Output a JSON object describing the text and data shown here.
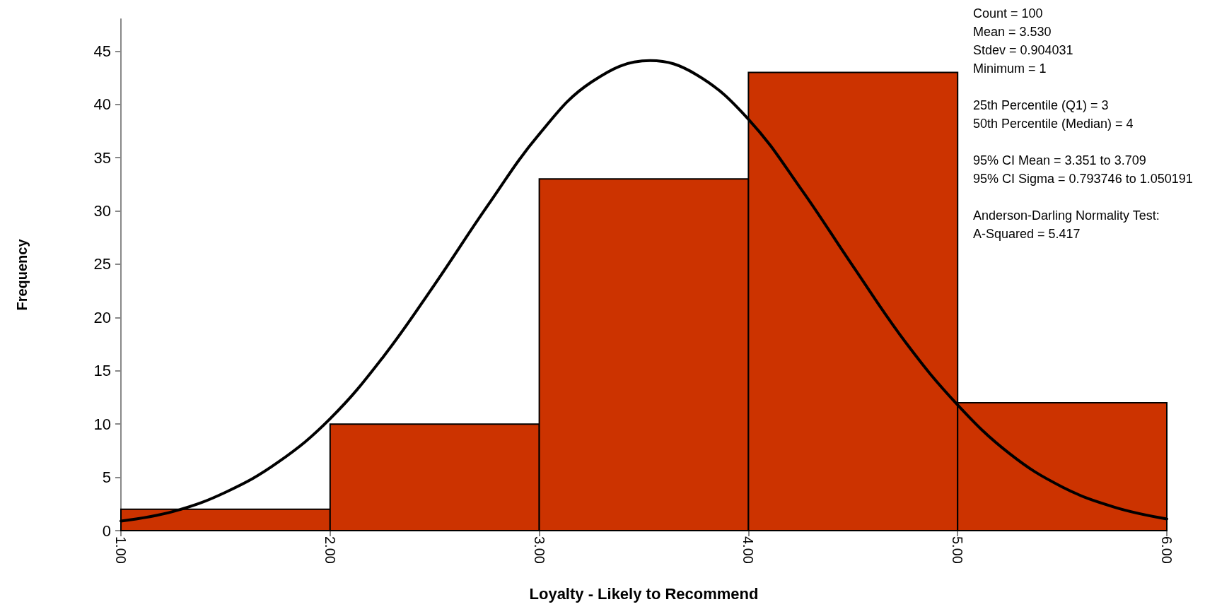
{
  "chart_data": {
    "type": "histogram",
    "xlabel": "Loyalty - Likely to Recommend",
    "ylabel": "Frequency",
    "bins": [
      1,
      2,
      3,
      4,
      5,
      6
    ],
    "values": [
      2,
      10,
      33,
      43,
      12
    ],
    "color": "#cc3300",
    "series": [
      {
        "type": "line",
        "color": "#000000",
        "x": [
          1,
          1.25,
          1.5,
          1.75,
          2,
          2.25,
          2.5,
          2.75,
          3,
          3.25,
          3.53,
          3.75,
          4,
          4.25,
          4.5,
          4.75,
          5,
          5.25,
          5.5,
          5.75,
          6
        ],
        "values": [
          0.9,
          1.8,
          3.6,
          6.4,
          10.5,
          16.2,
          23.1,
          30.4,
          37.2,
          42.1,
          44.1,
          42.8,
          38.6,
          32.1,
          24.8,
          17.7,
          11.8,
          7.2,
          4.1,
          2.2,
          1.1
        ]
      }
    ],
    "xlim": [
      1,
      6
    ],
    "xticks": [
      {
        "value": 1,
        "label": "1.00"
      },
      {
        "value": 2,
        "label": "2.00"
      },
      {
        "value": 3,
        "label": "3.00"
      },
      {
        "value": 4,
        "label": "4.00"
      },
      {
        "value": 5,
        "label": "5.00"
      },
      {
        "value": 6,
        "label": "6.00"
      }
    ],
    "ylim": [
      0,
      48
    ],
    "yticks": [
      0,
      5,
      10,
      15,
      20,
      25,
      30,
      35,
      40,
      45
    ],
    "grid": false,
    "marker": "none",
    "line_style": "solid",
    "annotations": [
      "Count = 100\nMean = 3.530\nStdev = 0.904031\nMinimum = 1",
      "25th Percentile (Q1) = 3\n50th Percentile (Median) = 4",
      "95% CI Mean = 3.351 to 3.709\n95% CI Sigma = 0.793746 to 1.050191",
      "Anderson-Darling Normality Test:\nA-Squared = 5.417"
    ]
  }
}
